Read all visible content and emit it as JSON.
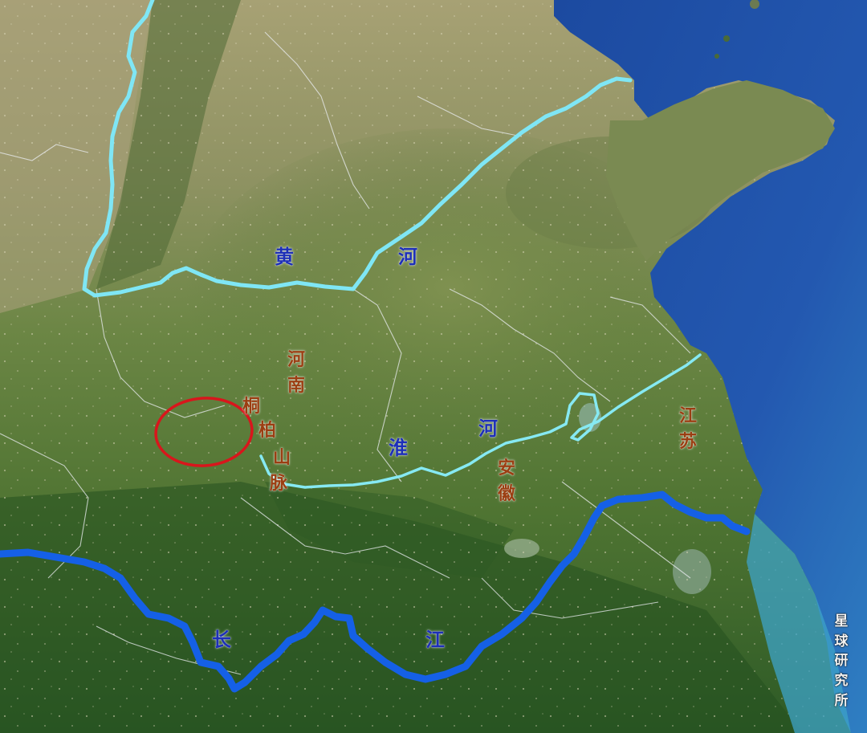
{
  "labels": {
    "yellow_river": [
      "黄",
      "河"
    ],
    "huai_river": [
      "淮",
      "河"
    ],
    "yangtze": [
      "长",
      "江"
    ],
    "henan": [
      "河",
      "南"
    ],
    "anhui": [
      "安",
      "徽"
    ],
    "jiangsu": [
      "江",
      "苏"
    ],
    "tongbai": [
      "桐",
      "柏",
      "山",
      "脉"
    ]
  },
  "watermark": [
    "星",
    "球",
    "研",
    "究",
    "所"
  ],
  "colors": {
    "yellow_river_line": "#7fe6f5",
    "huai_river_line": "#86e9f3",
    "yangtze_line": "#1560e6",
    "tongbai_circle": "#d8161c",
    "sea": "#1d4fa6",
    "land_north": "#9a9a68",
    "land_plain": "#5f7d3a",
    "land_south": "#2f5a25"
  }
}
